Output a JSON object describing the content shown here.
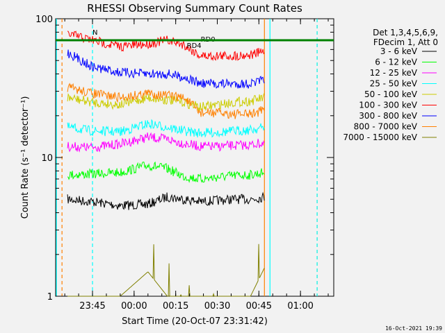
{
  "chart_data": {
    "type": "line",
    "title": "RHESSI Observing Summary Count Rates",
    "xlabel": "Start Time (20-Oct-07 23:31:42)",
    "ylabel": "Count Rate (s⁻¹ detector⁻¹)",
    "y_scale": "log",
    "ylim": [
      1,
      100
    ],
    "y_tick_labels": [
      "1",
      "10",
      "100"
    ],
    "x_start": "23:31:42",
    "x_end": "01:12:00",
    "x_ticks": [
      "23:45",
      "00:00",
      "00:15",
      "00:30",
      "00:45",
      "01:00"
    ],
    "legend_header": [
      "Det 1,3,4,5,6,9,",
      "FDecim 1, Att 0"
    ],
    "legend_placement": "right",
    "annotations": [
      {
        "label": "N",
        "time": "23:44"
      },
      {
        "label": "RD4",
        "time": "00:18"
      },
      {
        "label": "RD0",
        "time": "00:23"
      }
    ],
    "vertical_markers": [
      {
        "time": "23:32",
        "color": "#00ffff"
      },
      {
        "time": "23:34",
        "color": "#ff8000",
        "dashed": true
      },
      {
        "time": "23:45",
        "color": "#00ffff",
        "dashed": true
      },
      {
        "time": "00:47",
        "color": "#ff8000"
      },
      {
        "time": "00:49",
        "color": "#00ffff"
      },
      {
        "time": "01:06",
        "color": "#ff8000",
        "dashed": true
      },
      {
        "time": "01:06",
        "color": "#00ffff",
        "dashed": true
      }
    ],
    "series": [
      {
        "name": "3 - 6 keV",
        "color": "#000000",
        "x": [
          "23:36",
          "23:45",
          "23:55",
          "00:05",
          "00:12",
          "00:18",
          "00:24",
          "00:30",
          "00:36",
          "00:42",
          "00:47"
        ],
        "values": [
          5,
          4.8,
          4.5,
          4.6,
          5.2,
          5.0,
          4.8,
          4.9,
          5.0,
          5.0,
          5.2
        ]
      },
      {
        "name": "6 - 12 keV",
        "color": "#00ff00",
        "x": [
          "23:36",
          "23:45",
          "23:55",
          "00:05",
          "00:12",
          "00:18",
          "00:24",
          "00:30",
          "00:36",
          "00:42",
          "00:47"
        ],
        "values": [
          7.5,
          7.6,
          7.8,
          8.8,
          8.3,
          7.3,
          7.0,
          7.2,
          7.4,
          7.5,
          7.8
        ]
      },
      {
        "name": "12 - 25 keV",
        "color": "#ff00ff",
        "x": [
          "23:36",
          "23:45",
          "23:55",
          "00:05",
          "00:12",
          "00:18",
          "00:24",
          "00:30",
          "00:36",
          "00:42",
          "00:47"
        ],
        "values": [
          12.0,
          11.8,
          12.5,
          14.0,
          13.5,
          12.6,
          12.0,
          12.0,
          12.2,
          12.3,
          12.8
        ]
      },
      {
        "name": "25 - 50 keV",
        "color": "#00ffff",
        "x": [
          "23:36",
          "23:45",
          "23:55",
          "00:05",
          "00:12",
          "00:18",
          "00:24",
          "00:30",
          "00:36",
          "00:42",
          "00:47"
        ],
        "values": [
          16.5,
          15.5,
          15.3,
          17.5,
          16.5,
          15.5,
          15.0,
          15.2,
          15.5,
          15.8,
          16.5
        ]
      },
      {
        "name": "50 - 100 keV",
        "color": "#cccc00",
        "x": [
          "23:36",
          "23:45",
          "23:55",
          "00:05",
          "00:12",
          "00:18",
          "00:24",
          "00:30",
          "00:36",
          "00:42",
          "00:47"
        ],
        "values": [
          27,
          25,
          24,
          27,
          26,
          25,
          23,
          24,
          25,
          25.5,
          27
        ]
      },
      {
        "name": "100 - 300 keV",
        "color": "#ff0000",
        "x": [
          "23:36",
          "23:45",
          "23:55",
          "00:05",
          "00:12",
          "00:18",
          "00:24",
          "00:30",
          "00:36",
          "00:42",
          "00:47"
        ],
        "values": [
          78,
          70,
          63,
          66,
          70,
          65,
          54,
          54,
          54,
          55,
          58
        ]
      },
      {
        "name": "300 - 800 keV",
        "color": "#0000ff",
        "x": [
          "23:36",
          "23:45",
          "23:55",
          "00:05",
          "00:12",
          "00:18",
          "00:24",
          "00:30",
          "00:36",
          "00:42",
          "00:47"
        ],
        "values": [
          57,
          45,
          41,
          40,
          40,
          38,
          34,
          34,
          34,
          34,
          36
        ]
      },
      {
        "name": "800 - 7000 keV",
        "color": "#ff8000",
        "x": [
          "23:36",
          "23:45",
          "23:55",
          "00:05",
          "00:12",
          "00:18",
          "00:24",
          "00:30",
          "00:36",
          "00:42",
          "00:47"
        ],
        "values": [
          32,
          29,
          27,
          29,
          28,
          27,
          21,
          21,
          20.5,
          20.5,
          22
        ]
      },
      {
        "name": "7000 - 15000 keV",
        "color": "#808000",
        "x": [
          "23:36",
          "23:45",
          "23:55",
          "00:05",
          "00:12",
          "00:18",
          "00:24",
          "00:30",
          "00:36",
          "00:42",
          "00:47"
        ],
        "values": [
          1,
          1,
          1,
          1.5,
          1,
          1,
          1,
          1,
          1,
          1,
          1.6
        ]
      }
    ]
  },
  "footer_date": "16-Oct-2021 19:39"
}
